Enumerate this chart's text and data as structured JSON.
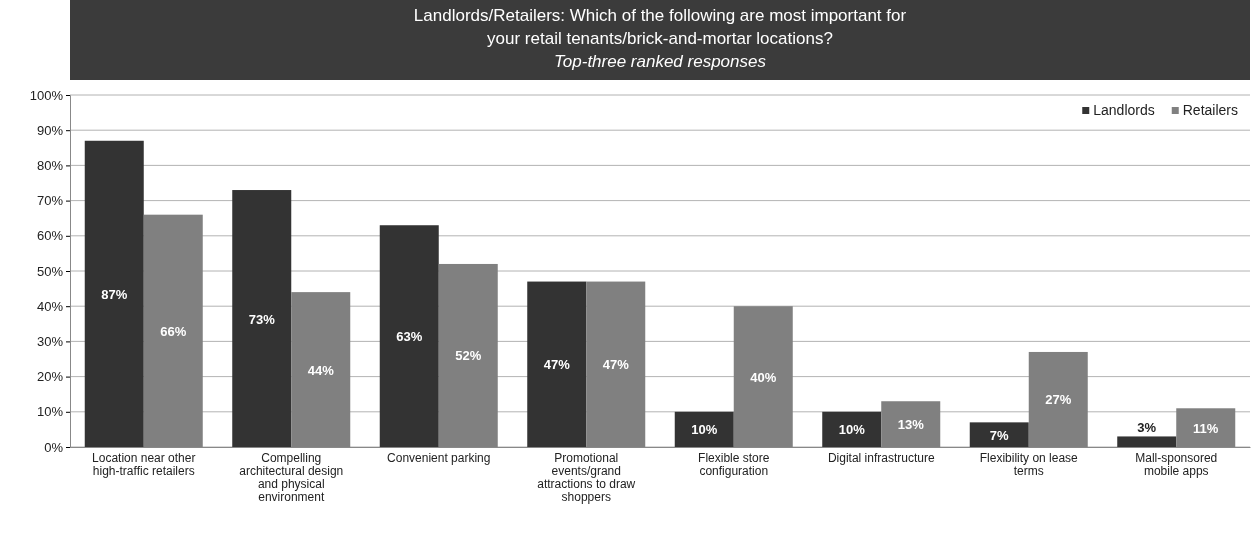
{
  "chart_data": {
    "type": "bar",
    "title": "Landlords/Retailers: Which of the following are most important for your retail tenants/brick-and-mortar locations?",
    "subtitle": "Top-three ranked responses",
    "categories": [
      "Location near other high-traffic retailers",
      "Compelling architectural design and physical environment",
      "Convenient parking",
      "Promotional events/grand attractions to draw shoppers",
      "Flexible store configuration",
      "Digital infrastructure",
      "Flexibility on lease terms",
      "Mall-sponsored mobile apps"
    ],
    "series": [
      {
        "name": "Landlords",
        "color": "#333333",
        "values": [
          87,
          73,
          63,
          47,
          10,
          10,
          7,
          3
        ],
        "value_labels": [
          "87%",
          "73%",
          "63%",
          "47%",
          "10%",
          "10%",
          "7%",
          "3%"
        ]
      },
      {
        "name": "Retailers",
        "color": "#808080",
        "values": [
          66,
          44,
          52,
          47,
          40,
          13,
          27,
          11
        ],
        "value_labels": [
          "66%",
          "44%",
          "52%",
          "47%",
          "40%",
          "13%",
          "27%",
          "11%"
        ]
      }
    ],
    "ylim": [
      0,
      100
    ],
    "yticks": [
      {
        "value": 0,
        "label": "0%"
      },
      {
        "value": 10,
        "label": "10%"
      },
      {
        "value": 20,
        "label": "20%"
      },
      {
        "value": 30,
        "label": "30%"
      },
      {
        "value": 40,
        "label": "40%"
      },
      {
        "value": 50,
        "label": "50%"
      },
      {
        "value": 60,
        "label": "60%"
      },
      {
        "value": 70,
        "label": "70%"
      },
      {
        "value": 80,
        "label": "80%"
      },
      {
        "value": 90,
        "label": "90%"
      },
      {
        "value": 100,
        "label": "100%"
      }
    ],
    "grid": "y",
    "legend": "top right"
  }
}
